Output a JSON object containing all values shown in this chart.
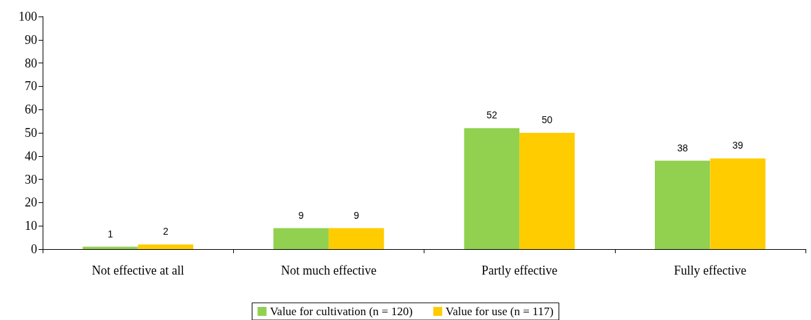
{
  "chart_data": {
    "type": "bar",
    "categories": [
      "Not effective at all",
      "Not much effective",
      "Partly effective",
      "Fully effective"
    ],
    "series": [
      {
        "name": "Value for cultivation (n = 120)",
        "color": "#92d050",
        "values": [
          1,
          9,
          52,
          38
        ]
      },
      {
        "name": "Value for use (n = 117)",
        "color": "#ffcc00",
        "values": [
          2,
          9,
          50,
          39
        ]
      }
    ],
    "ylim": [
      0,
      100
    ],
    "yticks": [
      0,
      10,
      20,
      30,
      40,
      50,
      60,
      70,
      80,
      90,
      100
    ],
    "grid": false,
    "legend": "bottom",
    "data_labels": true
  }
}
